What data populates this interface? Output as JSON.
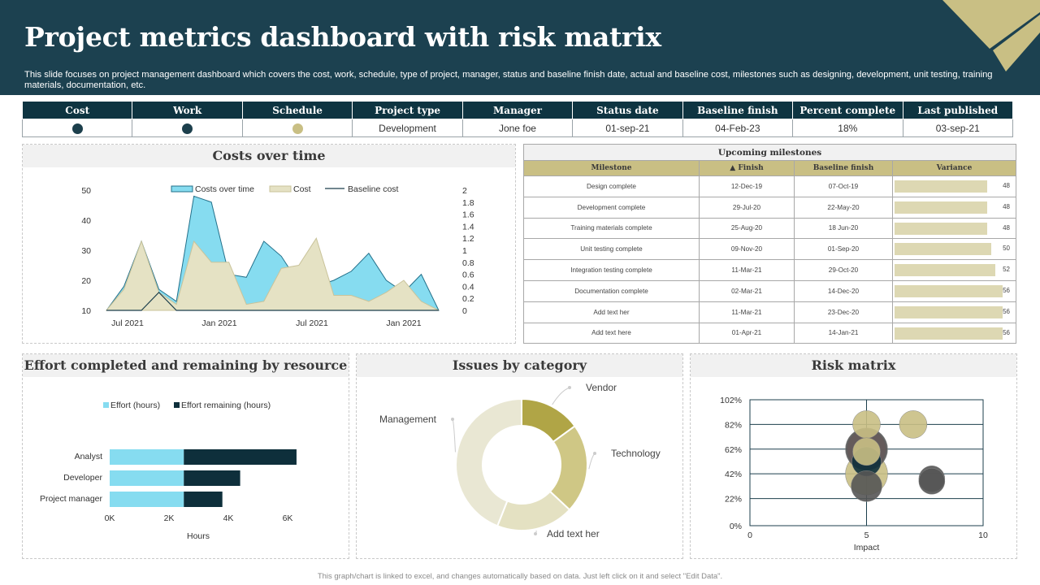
{
  "header": {
    "title": "Project metrics dashboard with risk matrix",
    "subtitle": "This slide focuses on project management dashboard which covers the cost, work, schedule, type of project, manager, status and baseline finish date, actual and baseline cost, milestones such as designing, development, unit testing, training materials, documentation, etc."
  },
  "summary": {
    "headers": [
      "Cost",
      "Work",
      "Schedule",
      "Project type",
      "Manager",
      "Status date",
      "Baseline finish",
      "Percent complete",
      "Last published"
    ],
    "status_colors": {
      "cost": "#1c3f4c",
      "work": "#1c3f4c",
      "schedule": "#c9bf84"
    },
    "project_type": "Development",
    "manager": "Jone foe",
    "status_date": "01-sep-21",
    "baseline_finish": "04-Feb-23",
    "percent_complete": "18%",
    "last_published": "03-sep-21"
  },
  "costs_panel": {
    "title": "Costs over time"
  },
  "effort_panel": {
    "title": "Effort completed and remaining by resource"
  },
  "issues_panel": {
    "title": "Issues by category"
  },
  "risk_panel": {
    "title": "Risk matrix"
  },
  "milestones": {
    "title": "Upcoming milestones",
    "headers": [
      "Milestone",
      "▲ Finish",
      "Baseline finish",
      "Variance"
    ],
    "rows": [
      {
        "name": "Design complete",
        "finish": "12-Dec-19",
        "baseline": "07-Oct-19",
        "variance": "48"
      },
      {
        "name": "Development  complete",
        "finish": "29-Jul-20",
        "baseline": "22-May-20",
        "variance": "48"
      },
      {
        "name": "Training materials complete",
        "finish": "25-Aug-20",
        "baseline": "18 Jun-20",
        "variance": "48"
      },
      {
        "name": "Unit testing complete",
        "finish": "09-Nov-20",
        "baseline": "01-Sep-20",
        "variance": "50"
      },
      {
        "name": "Integration  testing complete",
        "finish": "11-Mar-21",
        "baseline": "29-Oct-20",
        "variance": "52"
      },
      {
        "name": "Documentation  complete",
        "finish": "02-Mar-21",
        "baseline": "14-Dec-20",
        "variance": "56"
      },
      {
        "name": "Add text her",
        "finish": "11-Mar-21",
        "baseline": "23-Dec-20",
        "variance": "56"
      },
      {
        "name": "Add text here",
        "finish": "01-Apr-21",
        "baseline": "14-Jan-21",
        "variance": "56"
      }
    ]
  },
  "chart_data": [
    {
      "type": "area",
      "title": "Costs over time",
      "x_ticks": [
        "Jul 2021",
        "Jan 2021",
        "Jul 2021",
        "Jan 2021"
      ],
      "y_ticks": [
        "50",
        "40",
        "30",
        "20",
        "10"
      ],
      "y2_ticks": [
        "2",
        "1.8",
        "1.6",
        "1.4",
        "1.2",
        "1",
        "0.8",
        "0.6",
        "0.4",
        "0.2",
        "0"
      ],
      "ylim": [
        10,
        50
      ],
      "series": [
        {
          "name": "Costs over time",
          "color": "#86dcf0",
          "values": [
            10,
            18,
            33,
            17,
            13,
            48,
            46,
            22,
            21,
            33,
            28,
            19,
            18,
            20,
            23,
            29,
            20,
            16,
            22,
            10
          ]
        },
        {
          "name": "Cost",
          "color": "#e5e2c4",
          "values": [
            10,
            17,
            33,
            16,
            12,
            33,
            26,
            26,
            12,
            13,
            24,
            25,
            34,
            15,
            15,
            13,
            16,
            20,
            13,
            10
          ]
        },
        {
          "name": "Baseline cost",
          "color": "#1c3f4c",
          "values": [
            10,
            10,
            10,
            16,
            10,
            10,
            10,
            10,
            10,
            10,
            10,
            10,
            10,
            10,
            10,
            10,
            10,
            10,
            10,
            10
          ]
        }
      ]
    },
    {
      "type": "bar",
      "title": "Effort completed and remaining by resource",
      "categories": [
        "Analyst",
        "Developer",
        "Project manager"
      ],
      "series": [
        {
          "name": "Effort (hours)",
          "color": "#86dcf0",
          "values": [
            2500,
            2500,
            2500
          ]
        },
        {
          "name": "Effort remaining (hours)",
          "color": "#0e2f3b",
          "values": [
            3800,
            1900,
            1300
          ]
        }
      ],
      "x_ticks": [
        "0K",
        "2K",
        "4K",
        "6K"
      ],
      "xlim": [
        0,
        6000
      ],
      "xlabel": "Hours"
    },
    {
      "type": "pie",
      "title": "Issues by category",
      "labels": [
        "Vendor",
        "Technology",
        "Add text her",
        "Management"
      ],
      "values": [
        15,
        22,
        19,
        44
      ],
      "colors": [
        "#b0a546",
        "#cfc785",
        "#e4e1c2",
        "#e9e7d3"
      ]
    },
    {
      "type": "scatter",
      "title": "Risk matrix",
      "xlabel": "Impact",
      "x_ticks": [
        "0",
        "5",
        "10"
      ],
      "y_ticks": [
        "102%",
        "82%",
        "62%",
        "42%",
        "22%",
        "0%"
      ],
      "xlim": [
        0,
        10
      ],
      "ylim": [
        0,
        102
      ],
      "points": [
        {
          "x": 5,
          "y": 42,
          "color": "#c9bf84"
        },
        {
          "x": 5,
          "y": 62,
          "color": "#ee7f7f"
        },
        {
          "x": 5,
          "y": 62,
          "color": "#555555"
        },
        {
          "x": 5,
          "y": 52,
          "color": "#0e2f3b"
        },
        {
          "x": 5,
          "y": 32,
          "color": "#555555"
        },
        {
          "x": 5,
          "y": 82,
          "color": "#c9bf84"
        },
        {
          "x": 7,
          "y": 82,
          "color": "#c9bf84"
        },
        {
          "x": 5,
          "y": 60,
          "color": "#c9bf84"
        },
        {
          "x": 7.8,
          "y": 38,
          "color": "#555555"
        },
        {
          "x": 7.8,
          "y": 36,
          "color": "#555555"
        }
      ]
    }
  ],
  "footer": "This graph/chart is linked to excel, and changes automatically based on data. Just left click on it and select \"Edit Data\"."
}
